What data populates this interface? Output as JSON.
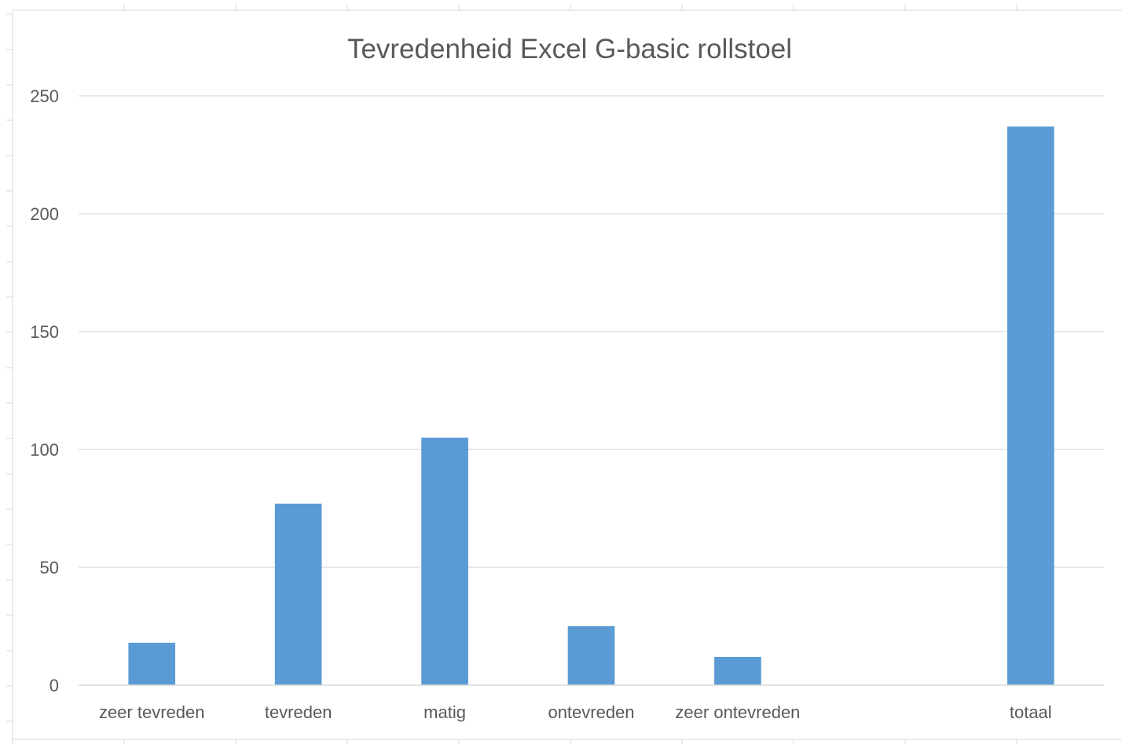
{
  "chart_data": {
    "type": "bar",
    "title": "Tevredenheid Excel G-basic rollstoel",
    "categories": [
      "zeer tevreden",
      "tevreden",
      "matig",
      "ontevreden",
      "zeer ontevreden",
      "",
      "totaal"
    ],
    "values": [
      18,
      77,
      105,
      25,
      12,
      null,
      237
    ],
    "yticks": [
      0,
      50,
      100,
      150,
      200,
      250
    ],
    "ylim": [
      0,
      250
    ],
    "xlabel": "",
    "ylabel": "",
    "grid": true,
    "legend": "none",
    "colors": {
      "bar": "#5b9bd5",
      "grid": "#d9d9d9",
      "text": "#595959",
      "frame": "#d9d9d9"
    }
  }
}
